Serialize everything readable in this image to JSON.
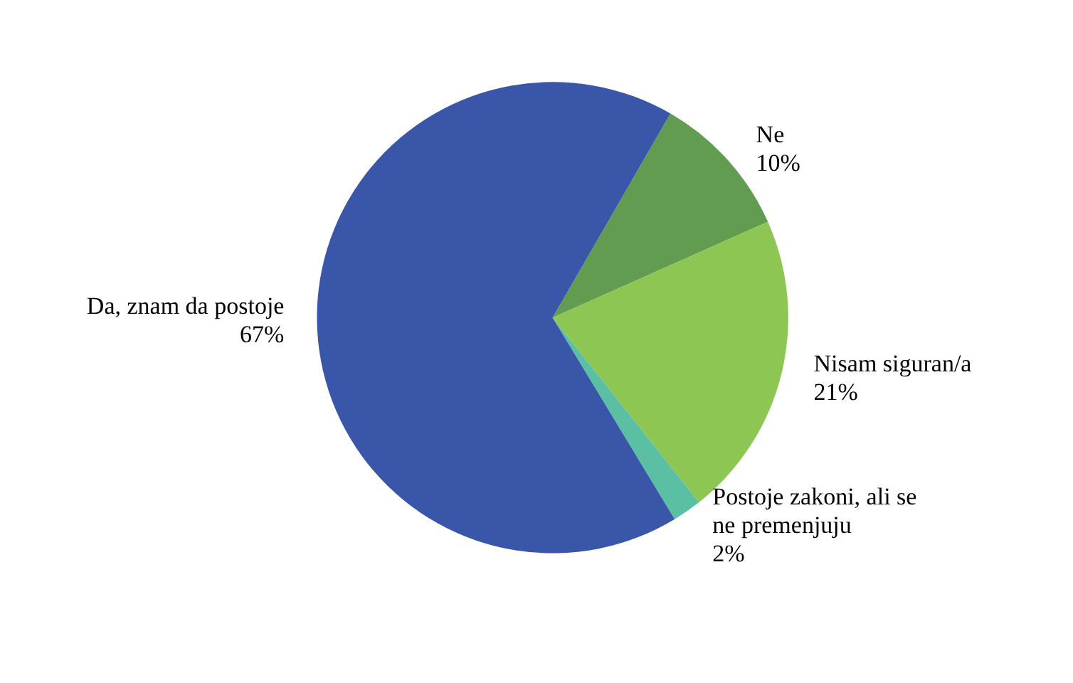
{
  "chart_data": {
    "type": "pie",
    "categories": [
      "Ne",
      "Nisam siguran/a",
      "Postoje zakoni, ali se ne premenjuju",
      "Da, znam da postoje"
    ],
    "values": [
      10,
      21,
      2,
      67
    ],
    "colors": [
      "#629c50",
      "#8dc653",
      "#5bbfa4",
      "#3a56a8"
    ],
    "value_labels": [
      "10%",
      "21%",
      "2%",
      "67%"
    ],
    "legend": false
  }
}
